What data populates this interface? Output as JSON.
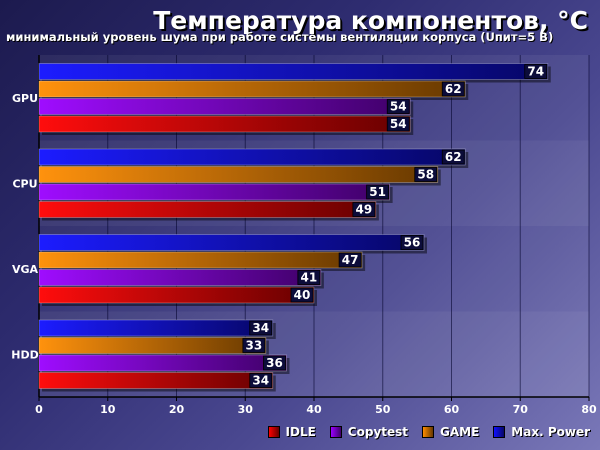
{
  "title": "Температура компонентов, °С",
  "subtitle": "минимальный уровень шума при работе системы вентиляции корпуса (Uпит=5 В)",
  "colors": {
    "IDLE": "#ff0000",
    "Copytest": "#9a00ff",
    "GAME": "#ff8c00",
    "Max. Power": "#1010ff"
  },
  "chart_data": {
    "type": "bar",
    "orientation": "horizontal",
    "categories": [
      "GPU",
      "CPU",
      "VGA",
      "HDD"
    ],
    "series": [
      {
        "name": "Max. Power",
        "values": [
          74,
          62,
          56,
          34
        ]
      },
      {
        "name": "GAME",
        "values": [
          62,
          58,
          47,
          33
        ]
      },
      {
        "name": "Copytest",
        "values": [
          54,
          51,
          41,
          36
        ]
      },
      {
        "name": "IDLE",
        "values": [
          54,
          49,
          40,
          34
        ]
      }
    ],
    "xlim": [
      0,
      80
    ],
    "xticks": [
      0,
      10,
      20,
      30,
      40,
      50,
      60,
      70,
      80
    ],
    "legend": [
      "IDLE",
      "Copytest",
      "GAME",
      "Max. Power"
    ],
    "legend_position": "bottom-right",
    "grid": true
  }
}
